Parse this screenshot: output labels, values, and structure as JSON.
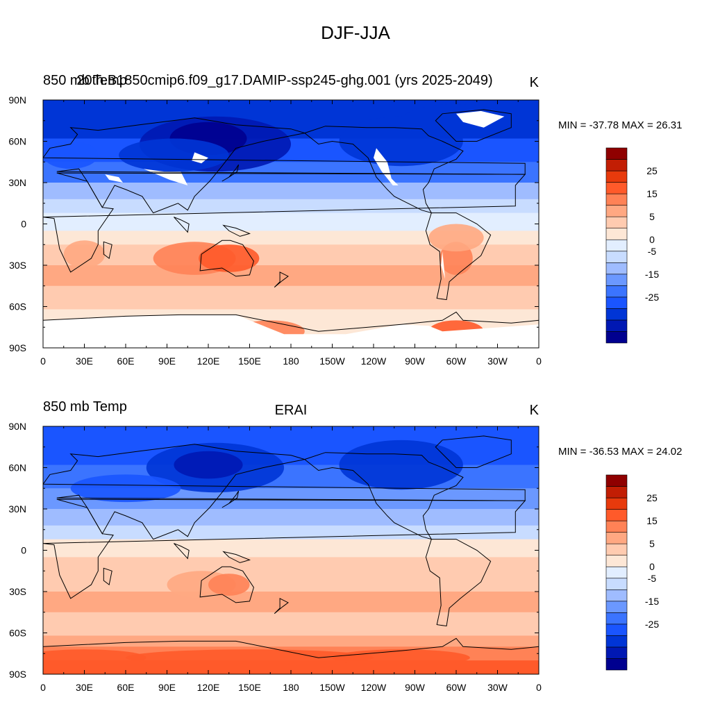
{
  "figure": {
    "title": "DJF-JJA"
  },
  "panels": [
    {
      "left_label": "850 mb Temp",
      "center_label": "20th.B1850cmip6.f09_g17.DAMIP-ssp245-ghg.001 (yrs 2025-2049)",
      "units": "K",
      "stats": "MIN = -37.78 MAX =  26.31",
      "has_missing": true
    },
    {
      "left_label": "850 mb Temp",
      "center_label": "ERAI",
      "units": "K",
      "stats": "MIN = -36.53 MAX =  24.02",
      "has_missing": false
    }
  ],
  "colorbar": {
    "levels": [
      -30,
      -25,
      -20,
      -15,
      -10,
      -5,
      0,
      5,
      10,
      15,
      20,
      25
    ],
    "labels": [
      "25",
      "15",
      "5",
      "0",
      "-5",
      "-15",
      "-25"
    ],
    "colors": [
      "#00008f",
      "#0018b3",
      "#0035d6",
      "#1a55ff",
      "#3b74ff",
      "#6b98ff",
      "#9fbcff",
      "#c8dcff",
      "#e2eeff",
      "#fde7d6",
      "#ffcbb0",
      "#ffa882",
      "#ff8256",
      "#ff5a2a",
      "#e83a0c",
      "#c21e04",
      "#8f0000"
    ]
  },
  "axes": {
    "lon_ticks": [
      "0",
      "30E",
      "60E",
      "90E",
      "120E",
      "150E",
      "180",
      "150W",
      "120W",
      "90W",
      "60W",
      "30W",
      "0"
    ],
    "lat_ticks": [
      "90N",
      "60N",
      "30N",
      "0",
      "30S",
      "60S",
      "90S"
    ]
  },
  "chart_data": {
    "type": "heatmap",
    "title": "DJF-JJA",
    "variable": "850 mb Temp",
    "units": "K",
    "xlim": [
      0,
      360
    ],
    "ylim": [
      -90,
      90
    ],
    "contour_levels": [
      -30,
      -25,
      -20,
      -15,
      -10,
      -5,
      0,
      5,
      10,
      15,
      20,
      25
    ],
    "panels": [
      {
        "name": "20th.B1850cmip6.f09_g17.DAMIP-ssp245-ghg.001 (yrs 2025-2049)",
        "min": -37.78,
        "max": 26.31
      },
      {
        "name": "ERAI",
        "min": -36.53,
        "max": 24.02
      }
    ]
  }
}
